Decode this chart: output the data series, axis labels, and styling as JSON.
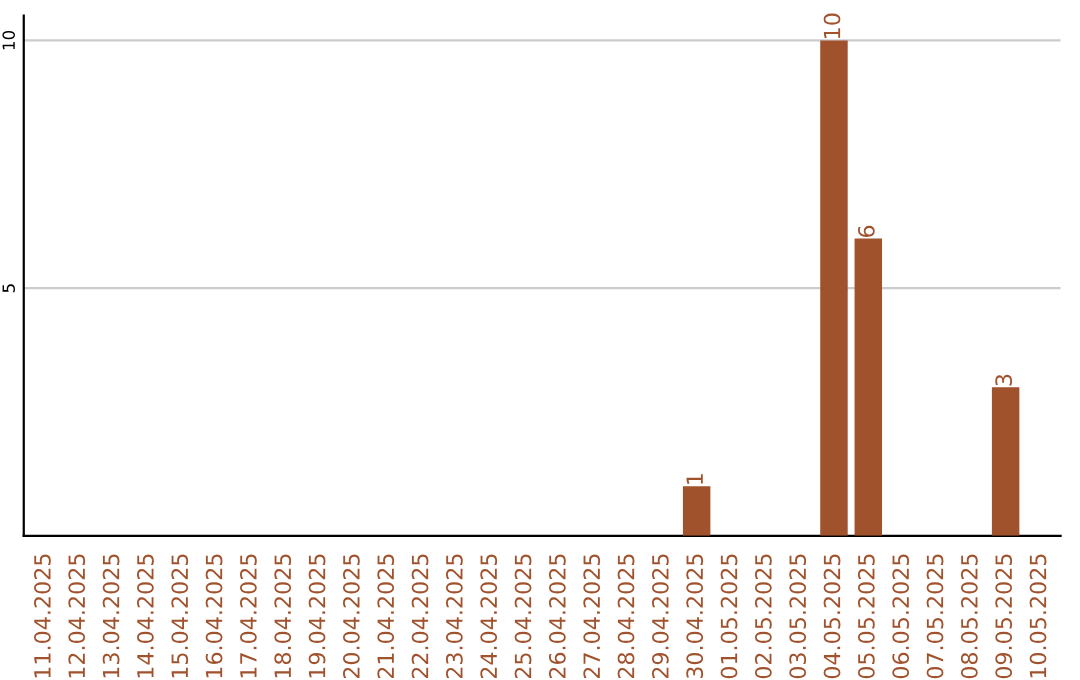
{
  "chart_data": {
    "type": "bar",
    "categories": [
      "11.04.2025",
      "12.04.2025",
      "13.04.2025",
      "14.04.2025",
      "15.04.2025",
      "16.04.2025",
      "17.04.2025",
      "18.04.2025",
      "19.04.2025",
      "20.04.2025",
      "21.04.2025",
      "22.04.2025",
      "23.04.2025",
      "24.04.2025",
      "25.04.2025",
      "26.04.2025",
      "27.04.2025",
      "28.04.2025",
      "29.04.2025",
      "30.04.2025",
      "01.05.2025",
      "02.05.2025",
      "03.05.2025",
      "04.05.2025",
      "05.05.2025",
      "06.05.2025",
      "07.05.2025",
      "08.05.2025",
      "09.05.2025",
      "10.05.2025"
    ],
    "values": [
      0,
      0,
      0,
      0,
      0,
      0,
      0,
      0,
      0,
      0,
      0,
      0,
      0,
      0,
      0,
      0,
      0,
      0,
      0,
      1,
      0,
      0,
      0,
      10,
      6,
      0,
      0,
      0,
      3,
      0
    ],
    "value_labels": [
      null,
      null,
      null,
      null,
      null,
      null,
      null,
      null,
      null,
      null,
      null,
      null,
      null,
      null,
      null,
      null,
      null,
      null,
      null,
      "1",
      null,
      null,
      null,
      "10",
      "6",
      null,
      null,
      null,
      "3",
      null
    ],
    "color": "#a0522d",
    "ylim": [
      0,
      10.5
    ],
    "yticks": [
      5,
      10
    ],
    "grid": "y"
  }
}
